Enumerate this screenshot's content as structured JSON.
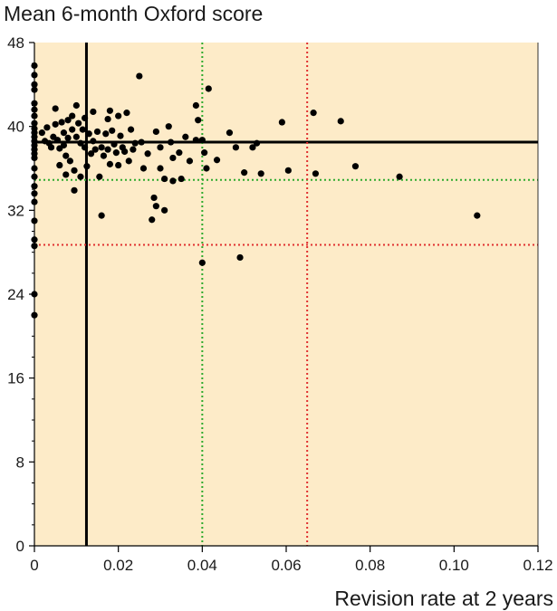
{
  "chart_data": {
    "type": "scatter",
    "title": "Mean 6-month Oxford score",
    "xlabel": "Revision rate at 2 years",
    "ylabel": "",
    "xlim": [
      0,
      0.12
    ],
    "ylim": [
      0,
      48
    ],
    "x_ticks": [
      0,
      0.02,
      0.04,
      0.06,
      0.08,
      0.1,
      0.12
    ],
    "x_tick_labels": [
      "0",
      "0.02",
      "0.04",
      "0.06",
      "0.08",
      "0.10",
      "0.12"
    ],
    "y_ticks": [
      0,
      8,
      16,
      24,
      32,
      40,
      48
    ],
    "y_tick_labels": [
      "0",
      "8",
      "16",
      "24",
      "32",
      "40",
      "48"
    ],
    "grid": false,
    "background_color": "#fdebc8",
    "reference_lines": [
      {
        "orientation": "vertical",
        "value": 0.0124,
        "style": "solid",
        "color": "#000000"
      },
      {
        "orientation": "horizontal",
        "value": 38.5,
        "style": "solid",
        "color": "#000000"
      },
      {
        "orientation": "vertical",
        "value": 0.04,
        "style": "dotted",
        "color": "#2eaa2e"
      },
      {
        "orientation": "horizontal",
        "value": 34.9,
        "style": "dotted",
        "color": "#2eaa2e"
      },
      {
        "orientation": "vertical",
        "value": 0.065,
        "style": "dotted",
        "color": "#e03030"
      },
      {
        "orientation": "horizontal",
        "value": 28.7,
        "style": "dotted",
        "color": "#e03030"
      }
    ],
    "points": [
      [
        0,
        45.8
      ],
      [
        0,
        44.9
      ],
      [
        0,
        44.0
      ],
      [
        0,
        43.5
      ],
      [
        0,
        42.2
      ],
      [
        0,
        41.6
      ],
      [
        0,
        41.0
      ],
      [
        0,
        40.3
      ],
      [
        0,
        39.8
      ],
      [
        0,
        39.4
      ],
      [
        0,
        39.0
      ],
      [
        0,
        38.6
      ],
      [
        0,
        38.2
      ],
      [
        0,
        37.8
      ],
      [
        0,
        37.4
      ],
      [
        0,
        37.0
      ],
      [
        0,
        36.0
      ],
      [
        0,
        35.2
      ],
      [
        0,
        34.3
      ],
      [
        0,
        33.6
      ],
      [
        0,
        32.8
      ],
      [
        0,
        31.0
      ],
      [
        0,
        29.2
      ],
      [
        0,
        28.6
      ],
      [
        0,
        24.0
      ],
      [
        0,
        22.0
      ],
      [
        0.0018,
        39.4
      ],
      [
        0.0025,
        38.6
      ],
      [
        0.003,
        39.9
      ],
      [
        0.0035,
        38.4
      ],
      [
        0.004,
        38.0
      ],
      [
        0.0045,
        39.0
      ],
      [
        0.005,
        41.7
      ],
      [
        0.005,
        40.2
      ],
      [
        0.0055,
        38.7
      ],
      [
        0.006,
        37.9
      ],
      [
        0.006,
        36.3
      ],
      [
        0.0065,
        40.4
      ],
      [
        0.007,
        39.4
      ],
      [
        0.007,
        38.2
      ],
      [
        0.0075,
        35.4
      ],
      [
        0.0075,
        37.2
      ],
      [
        0.008,
        40.6
      ],
      [
        0.008,
        38.9
      ],
      [
        0.0085,
        36.7
      ],
      [
        0.009,
        41.0
      ],
      [
        0.009,
        39.7
      ],
      [
        0.0095,
        35.8
      ],
      [
        0.0095,
        33.9
      ],
      [
        0.01,
        42.0
      ],
      [
        0.01,
        39.0
      ],
      [
        0.0105,
        40.3
      ],
      [
        0.011,
        38.4
      ],
      [
        0.011,
        35.2
      ],
      [
        0.0115,
        39.7
      ],
      [
        0.012,
        40.8
      ],
      [
        0.012,
        38.0
      ],
      [
        0.0125,
        36.2
      ],
      [
        0.013,
        39.3
      ],
      [
        0.0135,
        37.4
      ],
      [
        0.014,
        41.4
      ],
      [
        0.014,
        38.6
      ],
      [
        0.0145,
        37.8
      ],
      [
        0.015,
        39.5
      ],
      [
        0.0155,
        35.2
      ],
      [
        0.016,
        31.5
      ],
      [
        0.016,
        38.0
      ],
      [
        0.0165,
        37.2
      ],
      [
        0.017,
        39.3
      ],
      [
        0.0175,
        40.7
      ],
      [
        0.0175,
        37.8
      ],
      [
        0.018,
        41.5
      ],
      [
        0.018,
        36.4
      ],
      [
        0.0185,
        39.6
      ],
      [
        0.019,
        38.3
      ],
      [
        0.0195,
        37.5
      ],
      [
        0.02,
        41.0
      ],
      [
        0.02,
        36.3
      ],
      [
        0.0205,
        39.1
      ],
      [
        0.021,
        38.0
      ],
      [
        0.0215,
        37.6
      ],
      [
        0.022,
        41.3
      ],
      [
        0.0225,
        36.7
      ],
      [
        0.023,
        39.7
      ],
      [
        0.0235,
        37.8
      ],
      [
        0.024,
        38.4
      ],
      [
        0.025,
        44.8
      ],
      [
        0.0255,
        38.5
      ],
      [
        0.026,
        36.0
      ],
      [
        0.027,
        37.4
      ],
      [
        0.028,
        31.1
      ],
      [
        0.0285,
        33.2
      ],
      [
        0.029,
        32.4
      ],
      [
        0.029,
        39.5
      ],
      [
        0.03,
        38.0
      ],
      [
        0.03,
        36.0
      ],
      [
        0.031,
        35.0
      ],
      [
        0.031,
        32.0
      ],
      [
        0.032,
        40.0
      ],
      [
        0.0325,
        38.5
      ],
      [
        0.033,
        37.0
      ],
      [
        0.033,
        34.8
      ],
      [
        0.0345,
        37.5
      ],
      [
        0.035,
        35.0
      ],
      [
        0.036,
        39.0
      ],
      [
        0.037,
        36.7
      ],
      [
        0.0385,
        42.0
      ],
      [
        0.0385,
        38.7
      ],
      [
        0.039,
        40.6
      ],
      [
        0.04,
        38.7
      ],
      [
        0.04,
        27.0
      ],
      [
        0.0405,
        37.5
      ],
      [
        0.041,
        36.0
      ],
      [
        0.0415,
        43.6
      ],
      [
        0.0435,
        36.8
      ],
      [
        0.0465,
        39.4
      ],
      [
        0.048,
        38.0
      ],
      [
        0.049,
        27.5
      ],
      [
        0.05,
        35.6
      ],
      [
        0.052,
        38.0
      ],
      [
        0.053,
        38.4
      ],
      [
        0.054,
        35.5
      ],
      [
        0.059,
        40.4
      ],
      [
        0.0605,
        35.8
      ],
      [
        0.0665,
        41.3
      ],
      [
        0.067,
        35.5
      ],
      [
        0.073,
        40.5
      ],
      [
        0.0765,
        36.2
      ],
      [
        0.087,
        35.2
      ],
      [
        0.1055,
        31.5
      ]
    ]
  }
}
